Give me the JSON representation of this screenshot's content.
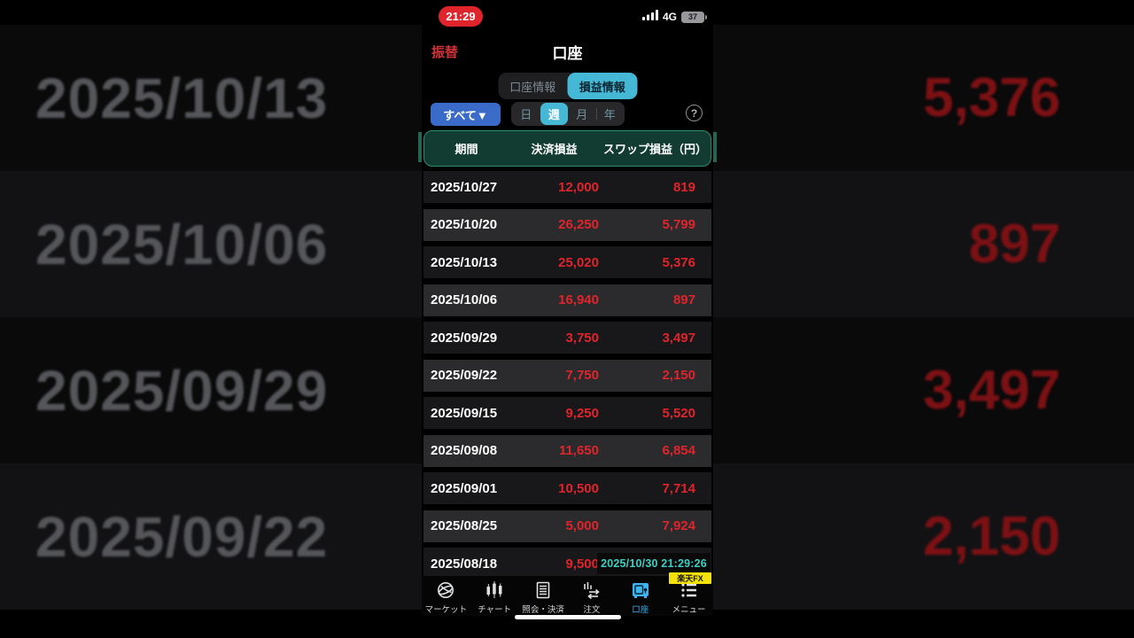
{
  "status_bar": {
    "time": "21:29",
    "network": "4G",
    "battery_level": "37"
  },
  "nav_header": {
    "back_action": "振替",
    "title": "口座"
  },
  "account_tabs": [
    {
      "label": "口座情報",
      "selected": false
    },
    {
      "label": "損益情報",
      "selected": true
    }
  ],
  "filter_bar": {
    "scope_button_label": "すべて▼",
    "periods": [
      {
        "label": "日",
        "selected": false
      },
      {
        "label": "週",
        "selected": true
      },
      {
        "label": "月",
        "selected": false
      },
      {
        "label": "年",
        "selected": false
      }
    ],
    "help_label": "?"
  },
  "table": {
    "columns": [
      "期間",
      "決済損益",
      "スワップ損益（円）"
    ],
    "rows": [
      [
        "2025/10/27",
        "12,000",
        "819"
      ],
      [
        "2025/10/20",
        "26,250",
        "5,799"
      ],
      [
        "2025/10/13",
        "25,020",
        "5,376"
      ],
      [
        "2025/10/06",
        "16,940",
        "897"
      ],
      [
        "2025/09/29",
        "3,750",
        "3,497"
      ],
      [
        "2025/09/22",
        "7,750",
        "2,150"
      ],
      [
        "2025/09/15",
        "9,250",
        "5,520"
      ],
      [
        "2025/09/08",
        "11,650",
        "6,854"
      ],
      [
        "2025/09/01",
        "10,500",
        "7,714"
      ],
      [
        "2025/08/25",
        "5,000",
        "7,924"
      ],
      [
        "2025/08/18",
        "9,500",
        ""
      ]
    ]
  },
  "recording_timestamp": "2025/10/30 21:29:26",
  "tab_bar": {
    "items": [
      {
        "label": "マーケット",
        "icon": "globe-icon",
        "selected": false
      },
      {
        "label": "チャート",
        "icon": "candlestick-icon",
        "selected": false
      },
      {
        "label": "照会・決済",
        "icon": "document-icon",
        "selected": false
      },
      {
        "label": "注文",
        "icon": "order-icon",
        "selected": false
      },
      {
        "label": "口座",
        "icon": "vault-icon",
        "selected": true
      },
      {
        "label": "メニュー",
        "icon": "menu-list-icon",
        "selected": false
      }
    ],
    "app_badge": "楽天FX"
  },
  "background_echo": {
    "rows": [
      {
        "date": "2025/10/13",
        "value": "5,376"
      },
      {
        "date": "2025/10/06",
        "value": "897"
      },
      {
        "date": "2025/09/29",
        "value": "3,497"
      },
      {
        "date": "2025/09/22",
        "value": "2,150"
      }
    ]
  },
  "colors": {
    "accent_red": "#e0242b",
    "header_action_red": "#d23238",
    "selected_cyan": "#45b8d6",
    "scope_blue": "#3a6bc9",
    "table_header_bg": "#123c31",
    "table_header_border": "#2f8a71",
    "row_dark": "#18181a",
    "row_light": "#2b2b2d",
    "timestamp_teal": "#3ecfc4",
    "badge_yellow": "#f2e20a",
    "tab_selected_blue": "#3fb3f0",
    "bg_date_gray": "#55565a",
    "bg_value_red": "#7c1114"
  }
}
